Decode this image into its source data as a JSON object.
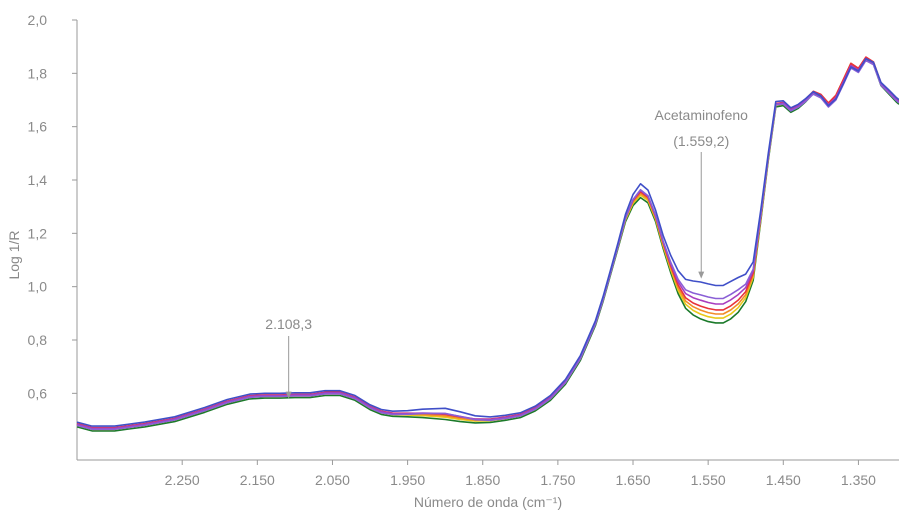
{
  "chart_data": {
    "type": "line",
    "xlabel": "Número de onda (cm⁻¹)",
    "ylabel": "Log 1/R",
    "xlim": [
      2390,
      1296
    ],
    "ylim": [
      0.35,
      2.0
    ],
    "x_ticks": [
      {
        "value": 2250,
        "label": "2.250"
      },
      {
        "value": 2150,
        "label": "2.150"
      },
      {
        "value": 2050,
        "label": "2.050"
      },
      {
        "value": 1950,
        "label": "1.950"
      },
      {
        "value": 1850,
        "label": "1.850"
      },
      {
        "value": 1750,
        "label": "1.750"
      },
      {
        "value": 1650,
        "label": "1.650"
      },
      {
        "value": 1550,
        "label": "1.550"
      },
      {
        "value": 1450,
        "label": "1.450"
      },
      {
        "value": 1350,
        "label": "1.350"
      }
    ],
    "y_ticks": [
      {
        "value": 0.6,
        "label": "0,6"
      },
      {
        "value": 0.8,
        "label": "0,8"
      },
      {
        "value": 1.0,
        "label": "1,0"
      },
      {
        "value": 1.2,
        "label": "1,2"
      },
      {
        "value": 1.4,
        "label": "1,4"
      },
      {
        "value": 1.6,
        "label": "1,6"
      },
      {
        "value": 1.8,
        "label": "1,8"
      },
      {
        "value": 2.0,
        "label": "2,0"
      }
    ],
    "grid": false,
    "annotations": [
      {
        "text": "2.108,3",
        "x": 2108.3,
        "y": 0.58
      },
      {
        "text": "Acetaminofeno",
        "text2": "(1.559,2)",
        "x": 1559.2,
        "y": 1.03
      }
    ],
    "base_curve": {
      "x": [
        2390,
        2370,
        2340,
        2300,
        2260,
        2220,
        2190,
        2160,
        2140,
        2120,
        2100,
        2080,
        2060,
        2040,
        2020,
        2000,
        1985,
        1970,
        1950,
        1930,
        1900,
        1880,
        1860,
        1840,
        1820,
        1800,
        1780,
        1760,
        1740,
        1720,
        1700,
        1690,
        1680,
        1670,
        1660,
        1650,
        1640,
        1630,
        1620,
        1610,
        1600,
        1590,
        1580,
        1570,
        1560,
        1550,
        1540,
        1530,
        1520,
        1510,
        1500,
        1490,
        1480,
        1470,
        1460,
        1450,
        1440,
        1430,
        1420,
        1410,
        1400,
        1390,
        1380,
        1370,
        1360,
        1350,
        1340,
        1330,
        1320,
        1310,
        1300,
        1296
      ],
      "y": [
        0.48,
        0.465,
        0.465,
        0.48,
        0.5,
        0.535,
        0.565,
        0.585,
        0.588,
        0.588,
        0.59,
        0.59,
        0.598,
        0.598,
        0.58,
        0.545,
        0.527,
        0.52,
        0.518,
        0.515,
        0.508,
        0.5,
        0.495,
        0.497,
        0.505,
        0.515,
        0.54,
        0.58,
        0.64,
        0.73,
        0.86,
        0.95,
        1.05,
        1.15,
        1.25,
        1.31,
        1.34,
        1.32,
        1.25,
        1.15,
        1.06,
        0.98,
        0.925,
        0.9,
        0.885,
        0.875,
        0.87,
        0.87,
        0.885,
        0.91,
        0.95,
        1.03,
        1.25,
        1.48,
        1.68,
        1.685,
        1.66,
        1.675,
        1.7,
        1.73,
        1.72,
        1.69,
        1.72,
        1.78,
        1.84,
        1.82,
        1.86,
        1.84,
        1.76,
        1.73,
        1.7,
        1.69
      ]
    },
    "series": [
      {
        "color": "#1b7a2a",
        "offset": -0.006,
        "feature": 0.0
      },
      {
        "color": "#e8c91a",
        "offset": 0.0,
        "feature": 0.02
      },
      {
        "color": "#f28c28",
        "offset": 0.003,
        "feature": 0.04
      },
      {
        "color": "#e8333a",
        "offset": 0.006,
        "feature": 0.06
      },
      {
        "color": "#a83dbf",
        "offset": 0.004,
        "feature": 0.1
      },
      {
        "color": "#8a5fd6",
        "offset": 0.0,
        "feature": 0.14
      },
      {
        "color": "#3f4fc8",
        "offset": 0.012,
        "feature": 0.2
      }
    ]
  }
}
